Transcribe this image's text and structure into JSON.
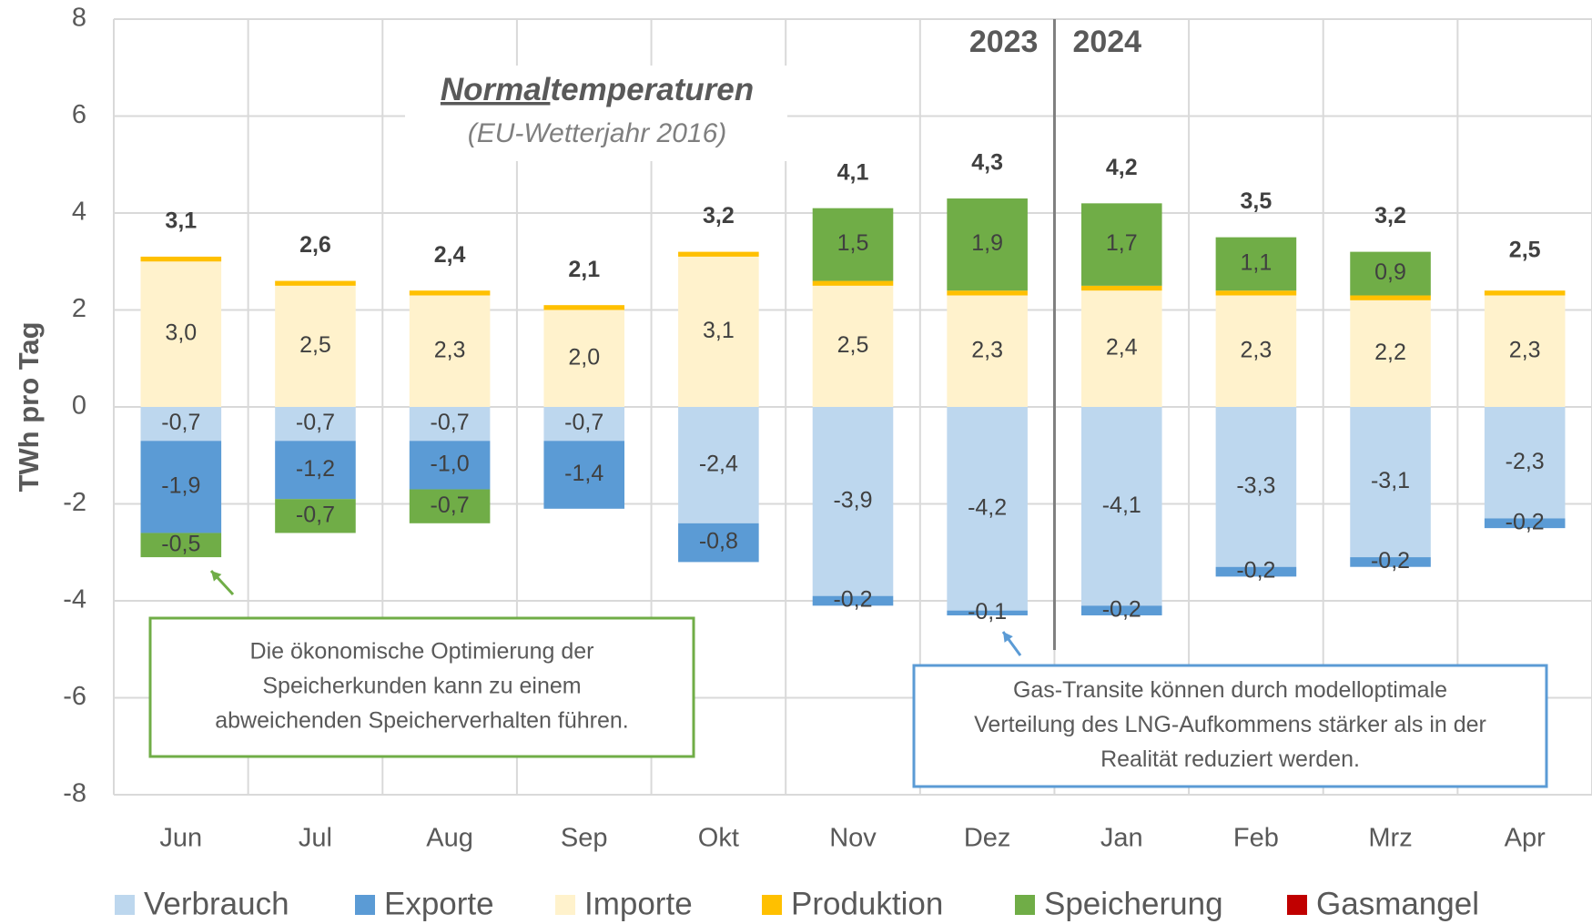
{
  "chart_data": {
    "type": "bar",
    "stacked": true,
    "y_label": "TWh pro Tag",
    "categories": [
      "Jun",
      "Jul",
      "Aug",
      "Sep",
      "Okt",
      "Nov",
      "Dez",
      "Jan",
      "Feb",
      "Mrz",
      "Apr"
    ],
    "series": [
      {
        "name": "Verbrauch",
        "color": "#bdd7ee",
        "values": [
          -0.7,
          -0.7,
          -0.7,
          -0.7,
          -2.4,
          -3.9,
          -4.2,
          -4.1,
          -3.3,
          -3.1,
          -2.3
        ],
        "value_labels": [
          "-0,7",
          "-0,7",
          "-0,7",
          "-0,7",
          "-2,4",
          "-3,9",
          "-4,2",
          "-4,1",
          "-3,3",
          "-3,1",
          "-2,3"
        ]
      },
      {
        "name": "Exporte",
        "color": "#5b9bd5",
        "values": [
          -1.9,
          -1.2,
          -1.0,
          -1.4,
          -0.8,
          -0.2,
          -0.1,
          -0.2,
          -0.2,
          -0.2,
          -0.2
        ],
        "value_labels": [
          "-1,9",
          "-1,2",
          "-1,0",
          "-1,4",
          "-0,8",
          "-0,2",
          "-0,1",
          "-0,2",
          "-0,2",
          "-0,2",
          "-0,2"
        ]
      },
      {
        "name": "Importe",
        "color": "#fff2cc",
        "values": [
          3.0,
          2.5,
          2.3,
          2.0,
          3.1,
          2.5,
          2.3,
          2.4,
          2.3,
          2.2,
          2.3
        ],
        "value_labels": [
          "3,0",
          "2,5",
          "2,3",
          "2,0",
          "3,1",
          "2,5",
          "2,3",
          "2,4",
          "2,3",
          "2,2",
          "2,3"
        ]
      },
      {
        "name": "Produktion",
        "color": "#ffc000",
        "values": [
          0.1,
          0.1,
          0.1,
          0.1,
          0.1,
          0.1,
          0.1,
          0.1,
          0.1,
          0.1,
          0.1
        ]
      },
      {
        "name": "Speicherung",
        "color": "#70ad47",
        "values": [
          -0.5,
          -0.7,
          -0.7,
          null,
          null,
          1.5,
          1.9,
          1.7,
          1.1,
          0.9,
          null
        ],
        "value_labels": [
          "-0,5",
          "-0,7",
          "-0,7",
          null,
          null,
          "1,5",
          "1,9",
          "1,7",
          "1,1",
          "0,9",
          null
        ]
      },
      {
        "name": "Gasmangel",
        "color": "#c00000",
        "values": [
          null,
          null,
          null,
          null,
          null,
          null,
          null,
          null,
          null,
          null,
          null
        ]
      }
    ],
    "totals": {
      "values": [
        3.1,
        2.6,
        2.4,
        2.1,
        3.2,
        4.1,
        4.3,
        4.2,
        3.5,
        3.2,
        2.5
      ],
      "value_labels": [
        "3,1",
        "2,6",
        "2,4",
        "2,1",
        "3,2",
        "4,1",
        "4,3",
        "4,2",
        "3,5",
        "3,2",
        "2,5"
      ]
    },
    "ylim": [
      -8,
      8
    ],
    "yticks": [
      8,
      6,
      4,
      2,
      0,
      -2,
      -4,
      -6,
      -8
    ],
    "grid": true,
    "annotations": {
      "year_left": "2023",
      "year_right": "2024",
      "heading": [
        "Normal",
        "temperaturen"
      ],
      "subheading": "(EU-Wetterjahr 2016)",
      "note_storage": [
        "Die ökonomische Optimierung der",
        "Speicherkunden kann zu einem",
        "abweichenden Speicherverhalten führen."
      ],
      "note_transit": [
        "Gas-Transite können durch modelloptimale",
        "Verteilung des LNG-Aufkommens stärker als in der",
        "Realität reduziert werden."
      ]
    }
  }
}
